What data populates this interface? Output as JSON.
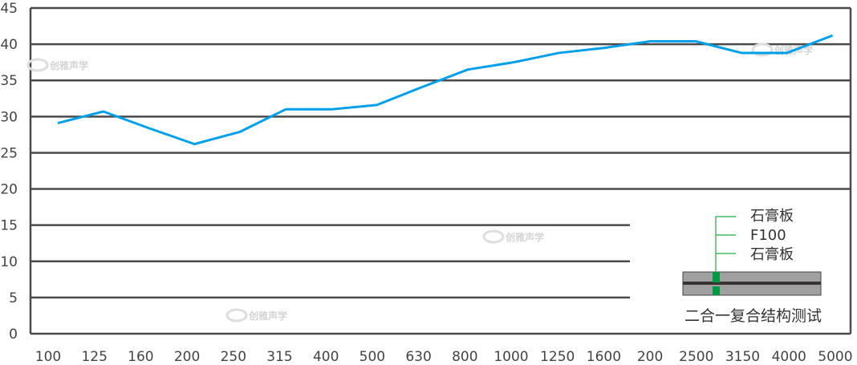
{
  "chart_data": {
    "type": "line",
    "title": "",
    "xlabel": "",
    "ylabel": "",
    "categories": [
      "100",
      "125",
      "160",
      "200",
      "250",
      "315",
      "400",
      "500",
      "630",
      "800",
      "1000",
      "1250",
      "1600",
      "200",
      "2500",
      "3150",
      "4000",
      "5000"
    ],
    "series": [
      {
        "values": [
          29.1,
          30.7,
          28.4,
          26.2,
          27.9,
          31.0,
          31.0,
          31.6,
          34.1,
          36.5,
          37.5,
          38.8,
          39.5,
          40.4,
          40.4,
          38.8,
          38.8,
          41.2
        ],
        "color": "#00a0e9"
      }
    ],
    "ylim": [
      0,
      45
    ],
    "yticks": [
      0,
      5,
      10,
      15,
      20,
      25,
      30,
      35,
      40,
      45
    ],
    "grid": true,
    "inset": {
      "labels": [
        "石膏板",
        "F100",
        "石膏板"
      ],
      "caption": "二合一复合结构测试",
      "colors": {
        "board": "#a0a0a0",
        "core": "#3a3333",
        "marker": "#009944"
      }
    },
    "watermark": "创雅声学"
  }
}
